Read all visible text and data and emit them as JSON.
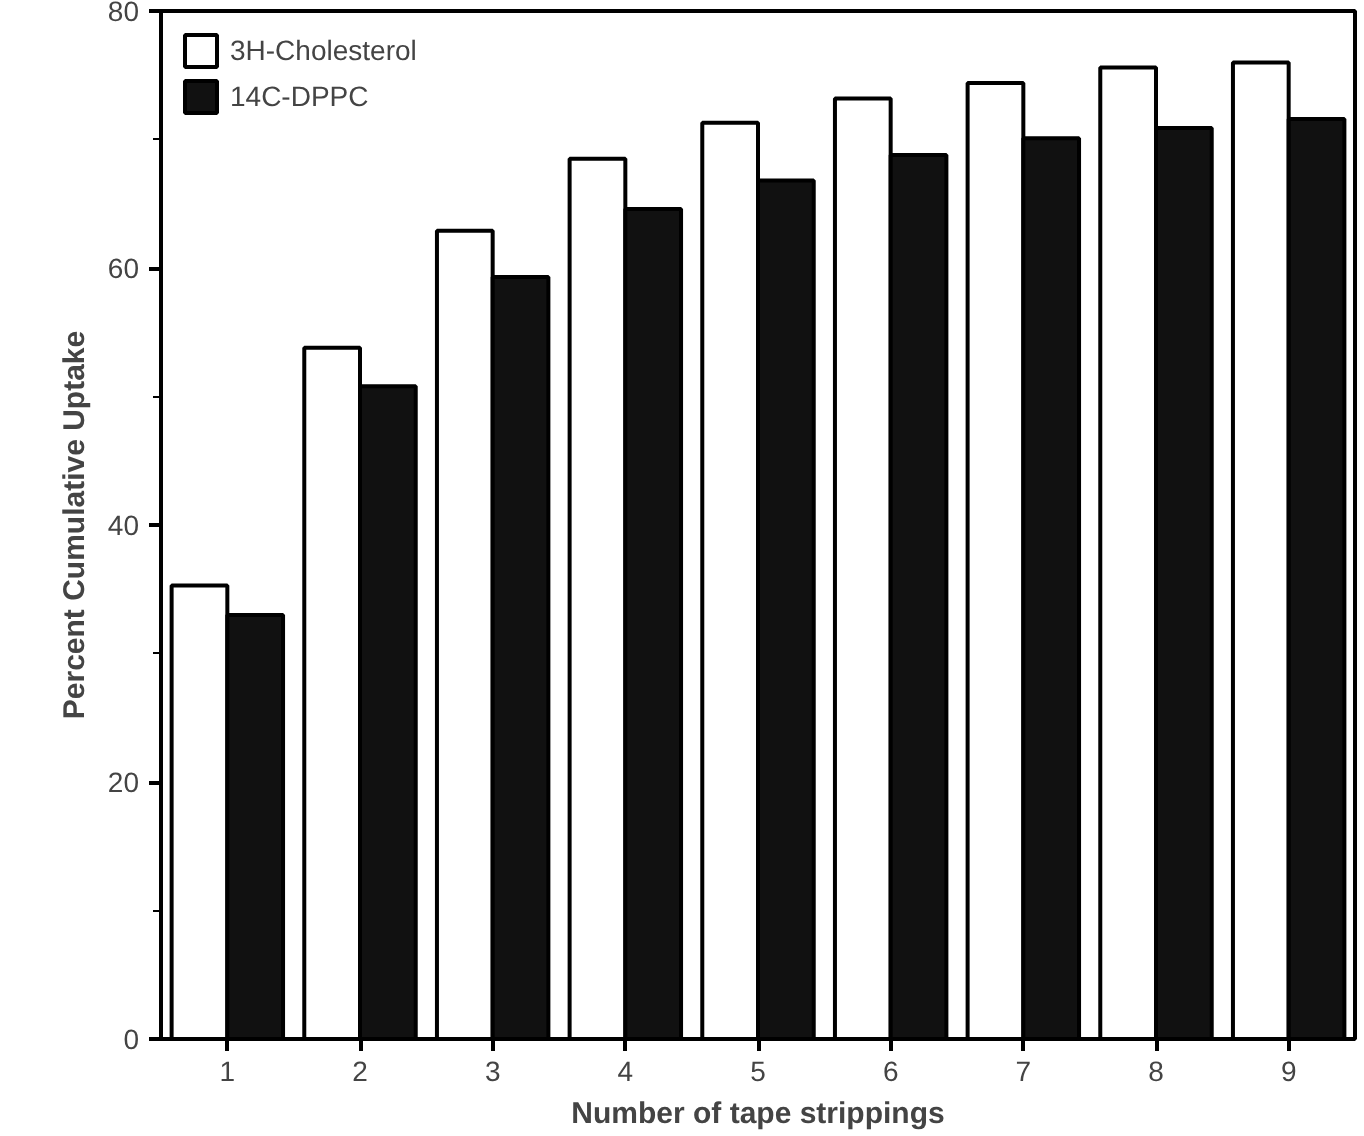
{
  "chart_data": {
    "type": "bar",
    "xlabel": "Number of tape strippings",
    "ylabel": "Percent Cumulative Uptake",
    "categories": [
      "1",
      "2",
      "3",
      "4",
      "5",
      "6",
      "7",
      "8",
      "9"
    ],
    "series": [
      {
        "name": "3H-Cholesterol",
        "color": "#ffffff",
        "values": [
          35.3,
          53.8,
          62.9,
          68.5,
          71.3,
          73.2,
          74.4,
          75.6,
          76.0
        ]
      },
      {
        "name": "14C-DPPC",
        "color": "#111111",
        "values": [
          33.0,
          50.8,
          59.3,
          64.6,
          66.8,
          68.8,
          70.1,
          70.9,
          71.6
        ]
      }
    ],
    "ylim": [
      0,
      80
    ],
    "yticks": [
      0,
      20,
      40,
      60,
      80
    ],
    "grid": false,
    "legend": "top left"
  }
}
